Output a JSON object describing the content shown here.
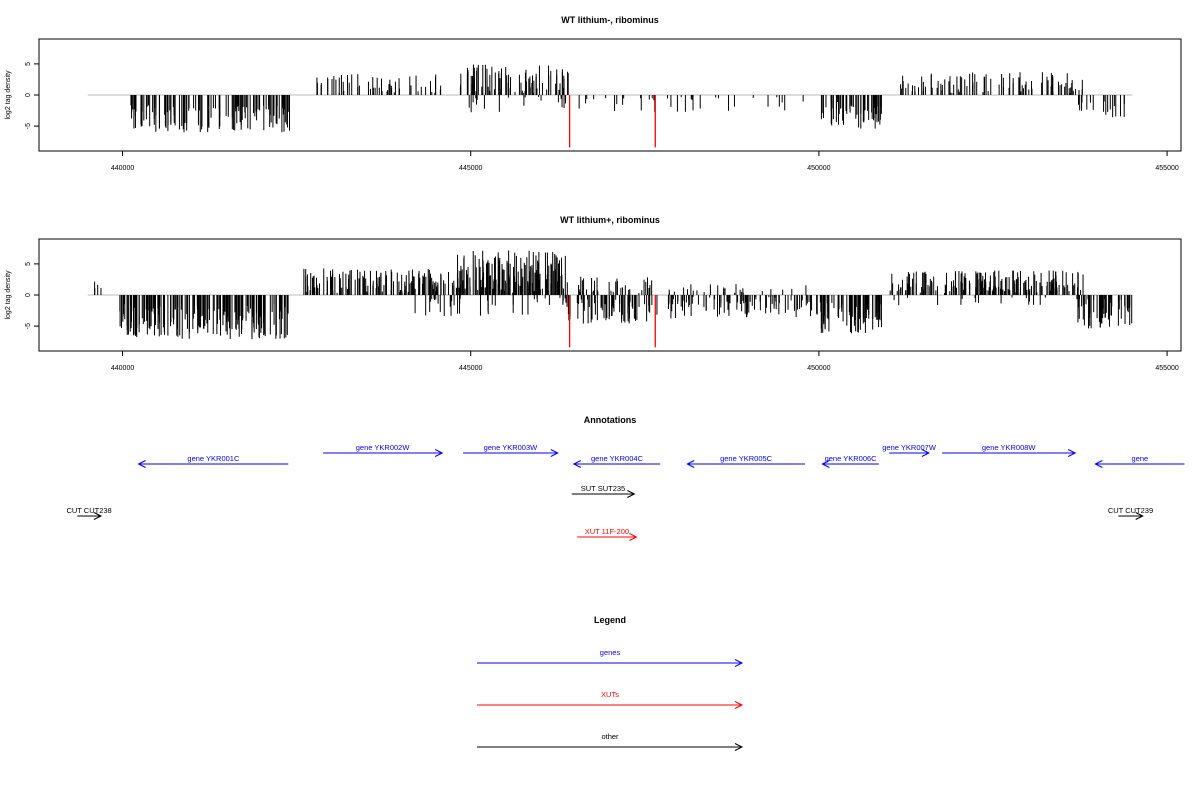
{
  "chart_data": [
    {
      "type": "bar",
      "title": "WT lithium-, ribominus",
      "ylabel": "log2 tag density",
      "xlim": [
        438800,
        455200
      ],
      "ylim": [
        -9,
        9
      ],
      "xticks": [
        440000,
        445000,
        450000,
        455000
      ],
      "yticks": [
        -5,
        0,
        5
      ],
      "grid": false,
      "baseline_range": [
        439500,
        454500
      ],
      "colors": {
        "bars": "#000000",
        "highlight": "#ff0000",
        "baseline": "#bbbbbb"
      },
      "segments": [
        {
          "start": 440100,
          "end": 442400,
          "sign": -1,
          "mean": 3.8,
          "amp": 2.2,
          "count": 130
        },
        {
          "start": 442700,
          "end": 444600,
          "sign": 1,
          "mean": 1.6,
          "amp": 1.8,
          "count": 55
        },
        {
          "start": 444800,
          "end": 446400,
          "sign": 1,
          "mean": 2.4,
          "amp": 2.6,
          "count": 90
        },
        {
          "start": 444900,
          "end": 446400,
          "sign": -1,
          "mean": 1.4,
          "amp": 1.5,
          "count": 20
        },
        {
          "start": 446500,
          "end": 449800,
          "sign": -1,
          "mean": 1.2,
          "amp": 1.6,
          "count": 35
        },
        {
          "start": 450000,
          "end": 450900,
          "sign": -1,
          "mean": 3.2,
          "amp": 2.2,
          "count": 55
        },
        {
          "start": 451100,
          "end": 453800,
          "sign": 1,
          "mean": 1.9,
          "amp": 1.8,
          "count": 95
        },
        {
          "start": 453700,
          "end": 454400,
          "sign": -1,
          "mean": 2.3,
          "amp": 1.3,
          "count": 18
        }
      ],
      "highlights": [
        {
          "x": 446420,
          "y": -8.4
        },
        {
          "x": 447650,
          "y": -8.4
        }
      ]
    },
    {
      "type": "bar",
      "title": "WT lithium+, ribominus",
      "ylabel": "log2 tag density",
      "xlim": [
        438800,
        455200
      ],
      "ylim": [
        -9,
        9
      ],
      "xticks": [
        440000,
        445000,
        450000,
        455000
      ],
      "yticks": [
        -5,
        0,
        5
      ],
      "grid": false,
      "baseline_range": [
        439500,
        454500
      ],
      "colors": {
        "bars": "#000000",
        "highlight": "#ff0000",
        "baseline": "#bbbbbb"
      },
      "segments": [
        {
          "start": 439550,
          "end": 439700,
          "sign": 1,
          "mean": 1.6,
          "amp": 0.6,
          "count": 4
        },
        {
          "start": 439950,
          "end": 442400,
          "sign": -1,
          "mean": 4.3,
          "amp": 2.8,
          "count": 200
        },
        {
          "start": 442600,
          "end": 444800,
          "sign": 1,
          "mean": 2.3,
          "amp": 2.0,
          "count": 140
        },
        {
          "start": 444800,
          "end": 446400,
          "sign": 1,
          "mean": 3.6,
          "amp": 3.6,
          "count": 170
        },
        {
          "start": 444200,
          "end": 446400,
          "sign": -1,
          "mean": 1.6,
          "amp": 1.8,
          "count": 40
        },
        {
          "start": 446400,
          "end": 447700,
          "sign": -1,
          "mean": 2.6,
          "amp": 2.0,
          "count": 70
        },
        {
          "start": 446500,
          "end": 447600,
          "sign": 1,
          "mean": 1.6,
          "amp": 1.4,
          "count": 35
        },
        {
          "start": 447800,
          "end": 450000,
          "sign": -1,
          "mean": 2.0,
          "amp": 1.8,
          "count": 95
        },
        {
          "start": 447800,
          "end": 450000,
          "sign": 1,
          "mean": 1.1,
          "amp": 1.0,
          "count": 25
        },
        {
          "start": 450000,
          "end": 450900,
          "sign": -1,
          "mean": 3.6,
          "amp": 2.6,
          "count": 80
        },
        {
          "start": 451000,
          "end": 453800,
          "sign": 1,
          "mean": 2.1,
          "amp": 2.0,
          "count": 180
        },
        {
          "start": 451000,
          "end": 453800,
          "sign": -1,
          "mean": 0.9,
          "amp": 0.8,
          "count": 20
        },
        {
          "start": 453700,
          "end": 454500,
          "sign": -1,
          "mean": 3.0,
          "amp": 2.4,
          "count": 60
        }
      ],
      "highlights": [
        {
          "x": 446420,
          "y": -8.4
        },
        {
          "x": 447650,
          "y": -8.4
        }
      ]
    }
  ],
  "annotations": {
    "title": "Annotations",
    "colors": {
      "gene": "#0000ff",
      "xut": "#ff0000",
      "other": "#000000"
    },
    "features": [
      {
        "label": "gene YKR001C",
        "start": 440230,
        "end": 442380,
        "strand": "-",
        "row": 1,
        "kind": "gene"
      },
      {
        "label": "gene YKR002W",
        "start": 442880,
        "end": 444590,
        "strand": "+",
        "row": 0,
        "kind": "gene"
      },
      {
        "label": "gene YKR003W",
        "start": 444890,
        "end": 446250,
        "strand": "+",
        "row": 0,
        "kind": "gene"
      },
      {
        "label": "gene YKR004C",
        "start": 446480,
        "end": 447720,
        "strand": "-",
        "row": 1,
        "kind": "gene"
      },
      {
        "label": "gene YKR005C",
        "start": 448110,
        "end": 449800,
        "strand": "-",
        "row": 1,
        "kind": "gene"
      },
      {
        "label": "gene YKR006C",
        "start": 450050,
        "end": 450860,
        "strand": "-",
        "row": 1,
        "kind": "gene"
      },
      {
        "label": "gene YKR007W",
        "start": 451010,
        "end": 451580,
        "strand": "+",
        "row": 0,
        "kind": "gene"
      },
      {
        "label": "gene YKR008W",
        "start": 451770,
        "end": 453680,
        "strand": "+",
        "row": 0,
        "kind": "gene"
      },
      {
        "label": "gene",
        "start": 453970,
        "end": 455250,
        "strand": "-",
        "row": 1,
        "kind": "gene"
      },
      {
        "label": "SUT SUT235",
        "start": 446450,
        "end": 447350,
        "strand": "+",
        "row": 2,
        "kind": "other"
      },
      {
        "label": "CUT CUT238",
        "start": 439350,
        "end": 439690,
        "strand": "+",
        "row": 3,
        "kind": "other"
      },
      {
        "label": "CUT CUT239",
        "start": 454300,
        "end": 454650,
        "strand": "+",
        "row": 3,
        "kind": "other"
      },
      {
        "label": "XUT 11F-200",
        "start": 446530,
        "end": 447380,
        "strand": "+",
        "row": 4,
        "kind": "xut"
      }
    ]
  },
  "legend": {
    "title": "Legend",
    "entries": [
      {
        "label": "genes",
        "color": "#0000ff"
      },
      {
        "label": "XUTs",
        "color": "#ff0000"
      },
      {
        "label": "other",
        "color": "#000000"
      }
    ]
  }
}
